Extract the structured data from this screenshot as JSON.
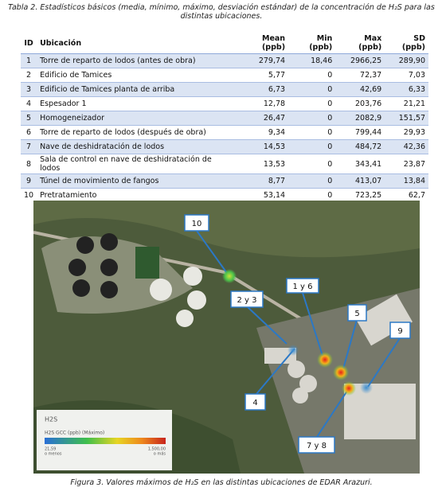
{
  "table_caption": "Tabla 2. Estadísticos básicos (media, mínimo, máximo, desviación estándar) de la concentración de H₂S para las distintas ubicaciones.",
  "table": {
    "header": [
      "ID",
      "Ubicación",
      "Mean (ppb)",
      "Min (ppb)",
      "Max (ppb)",
      "SD (ppb)"
    ],
    "rows": [
      [
        "1",
        "Torre de reparto de lodos (antes de obra)",
        "279,74",
        "18,46",
        "2966,25",
        "289,90"
      ],
      [
        "2",
        "Edificio de Tamices",
        "5,77",
        "0",
        "72,37",
        "7,03"
      ],
      [
        "3",
        "Edificio de Tamices planta de arriba",
        "6,73",
        "0",
        "42,69",
        "6,33"
      ],
      [
        "4",
        "Espesador 1",
        "12,78",
        "0",
        "203,76",
        "21,21"
      ],
      [
        "5",
        "Homogeneizador",
        "26,47",
        "0",
        "2082,9",
        "151,57"
      ],
      [
        "6",
        "Torre de reparto de lodos (después de obra)",
        "9,34",
        "0",
        "799,44",
        "29,93"
      ],
      [
        "7",
        "Nave de deshidratación de lodos",
        "14,53",
        "0",
        "484,72",
        "42,36"
      ],
      [
        "8",
        "Sala de control en nave de deshidratación de lodos",
        "13,53",
        "0",
        "343,41",
        "23,87"
      ],
      [
        "9",
        "Túnel de movimiento de fangos",
        "8,77",
        "0",
        "413,07",
        "13,84"
      ],
      [
        "10",
        "Pretratamiento",
        "53,14",
        "0",
        "723,25",
        "62,7"
      ]
    ]
  },
  "map": {
    "labels": [
      "10",
      "1 y 6",
      "2 y 3",
      "5",
      "9",
      "4",
      "7 y 8"
    ],
    "legend": {
      "title": "H2S",
      "subtitle": "H2S GCC (ppb) (Máximo)",
      "min": "21,59",
      "max": "1.500,00",
      "min_note": "o menos",
      "max_note": "o más"
    }
  },
  "figure_caption": "Figura 3. Valores máximos de H₂S en las distintas ubicaciones de EDAR Arazuri."
}
